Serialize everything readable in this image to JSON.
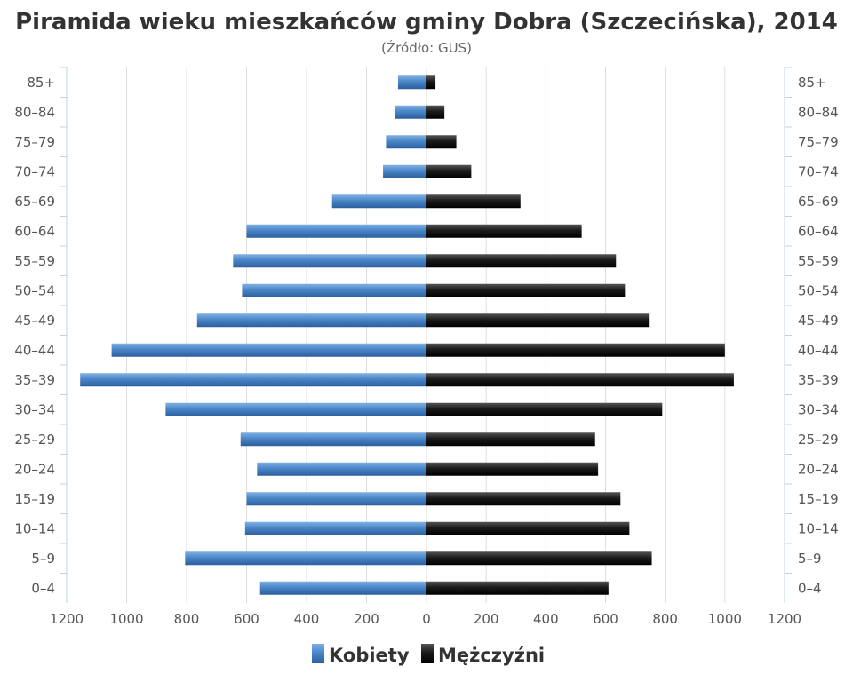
{
  "colors": {
    "kobiety": "#4a86c8",
    "mezczyzni": "#1a1a1a",
    "grid": "#dddddd",
    "axis": "#c0d0e0"
  },
  "chart_data": {
    "type": "bar",
    "orientation": "horizontal-pyramid",
    "title": "Piramida wieku mieszkańców gminy Dobra (Szczecińska), 2014",
    "subtitle": "(Źródło: GUS)",
    "categories": [
      "85+",
      "80–84",
      "75–79",
      "70–74",
      "65–69",
      "60–64",
      "55–59",
      "50–54",
      "45–49",
      "40–44",
      "35–39",
      "30–34",
      "25–29",
      "20–24",
      "15–19",
      "10–14",
      "5–9",
      "0–4"
    ],
    "series": [
      {
        "name": "Kobiety",
        "side": "left",
        "values": [
          95,
          105,
          135,
          145,
          315,
          600,
          645,
          615,
          765,
          1050,
          1155,
          870,
          620,
          565,
          600,
          605,
          805,
          555
        ]
      },
      {
        "name": "Mężczyźni",
        "side": "right",
        "values": [
          30,
          60,
          100,
          150,
          315,
          520,
          635,
          665,
          745,
          1000,
          1030,
          790,
          565,
          575,
          650,
          680,
          755,
          610
        ]
      }
    ],
    "xlim": [
      -1200,
      1200
    ],
    "xticks": [
      "1200",
      "1000",
      "800",
      "600",
      "400",
      "200",
      "0",
      "200",
      "400",
      "600",
      "800",
      "1000",
      "1200"
    ],
    "grid": true,
    "legend_position": "bottom-center"
  }
}
